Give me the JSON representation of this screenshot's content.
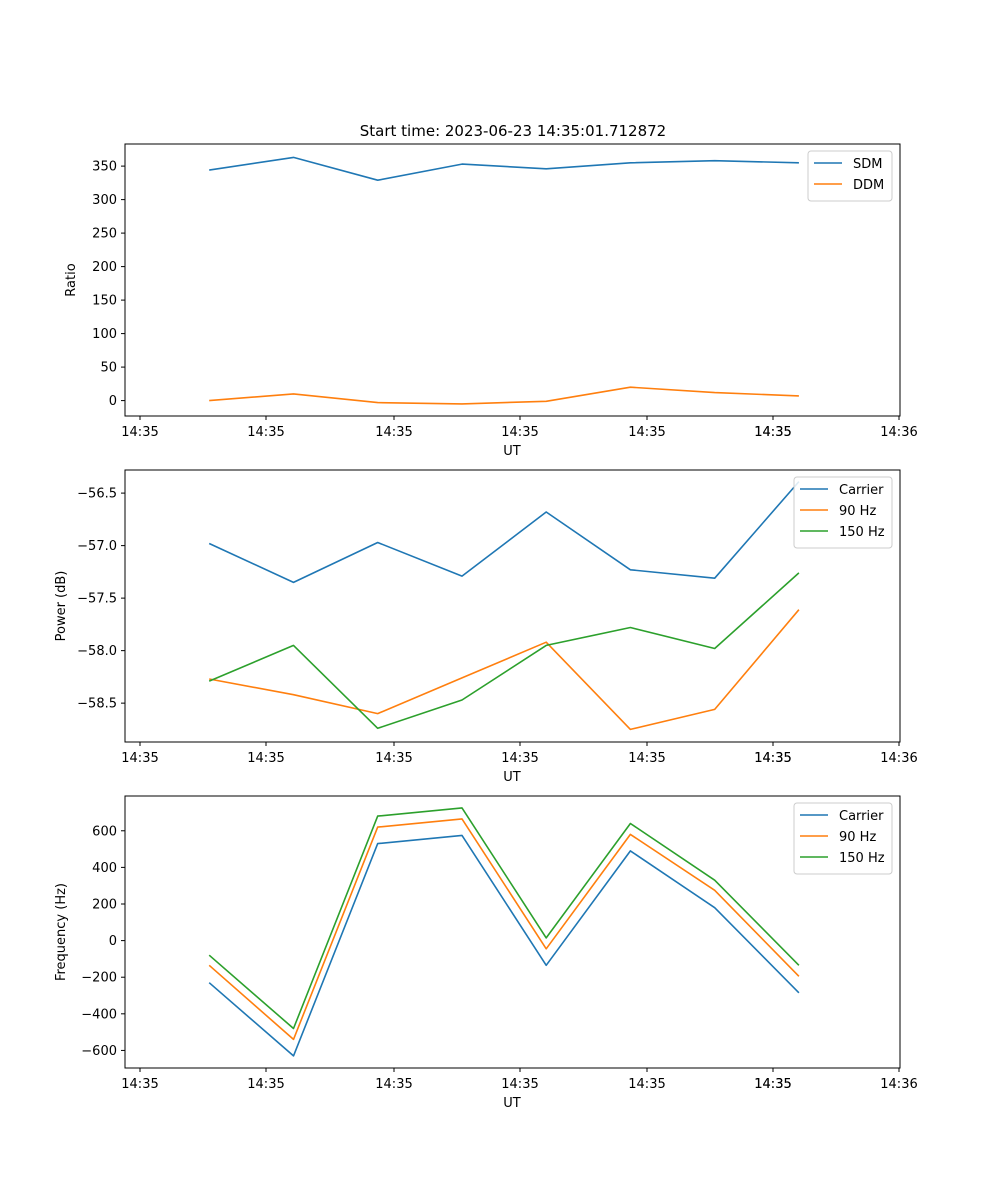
{
  "chart_data": [
    {
      "type": "line",
      "title": "Start time: 2023-06-23 14:35:01.712872",
      "xlabel": "UT",
      "ylabel": "Ratio",
      "x_tick_labels": [
        "14:35",
        "14:35",
        "14:35",
        "14:35",
        "14:35",
        "14:35",
        "14:35"
      ],
      "x_tick_last": "14:36",
      "xlim_seconds_after_start": [
        -1.0,
        8.2
      ],
      "y_ticks": [
        0,
        50,
        100,
        150,
        200,
        250,
        300,
        350
      ],
      "ylim": [
        -23,
        383
      ],
      "legend_position": "top-right",
      "x_seconds_after_start": [
        0,
        1,
        2,
        3,
        4,
        5,
        6,
        7
      ],
      "series": [
        {
          "name": "SDM",
          "color": "#1f77b4",
          "values": [
            344,
            363,
            329,
            353,
            346,
            355,
            358,
            355
          ]
        },
        {
          "name": "DDM",
          "color": "#ff7f0e",
          "values": [
            0,
            10,
            -3,
            -5,
            -1,
            20,
            12,
            7
          ]
        }
      ]
    },
    {
      "type": "line",
      "title": "",
      "xlabel": "UT",
      "ylabel": "Power (dB)",
      "x_tick_labels": [
        "14:35",
        "14:35",
        "14:35",
        "14:35",
        "14:35",
        "14:35",
        "14:35"
      ],
      "x_tick_last": "14:36",
      "xlim_seconds_after_start": [
        -1.0,
        8.2
      ],
      "y_ticks": [
        -58.5,
        -58.0,
        -57.5,
        -57.0,
        -56.5
      ],
      "y_tick_labels": [
        "−58.5",
        "−58.0",
        "−57.5",
        "−57.0",
        "−56.5"
      ],
      "ylim": [
        -58.87,
        -56.28
      ],
      "legend_position": "top-right",
      "x_seconds_after_start": [
        0,
        1,
        2,
        3,
        4,
        5,
        6,
        7
      ],
      "series": [
        {
          "name": "Carrier",
          "color": "#1f77b4",
          "values": [
            -56.98,
            -57.35,
            -56.97,
            -57.29,
            -56.68,
            -57.23,
            -57.31,
            -56.39
          ]
        },
        {
          "name": "90 Hz",
          "color": "#ff7f0e",
          "values": [
            -58.27,
            -58.42,
            -58.6,
            -58.26,
            -57.92,
            -58.75,
            -58.56,
            -57.61
          ]
        },
        {
          "name": "150 Hz",
          "color": "#2ca02c",
          "values": [
            -58.29,
            -57.95,
            -58.74,
            -58.47,
            -57.95,
            -57.78,
            -57.98,
            -57.26
          ]
        }
      ]
    },
    {
      "type": "line",
      "title": "",
      "xlabel": "UT",
      "ylabel": "Frequency (Hz)",
      "x_tick_labels": [
        "14:35",
        "14:35",
        "14:35",
        "14:35",
        "14:35",
        "14:35",
        "14:35"
      ],
      "x_tick_last": "14:36",
      "xlim_seconds_after_start": [
        -1.0,
        8.2
      ],
      "y_ticks": [
        -600,
        -400,
        -200,
        0,
        200,
        400,
        600
      ],
      "y_tick_labels": [
        "−600",
        "−400",
        "−200",
        "0",
        "200",
        "400",
        "600"
      ],
      "ylim": [
        -696,
        790
      ],
      "legend_position": "top-right",
      "x_seconds_after_start": [
        0,
        1,
        2,
        3,
        4,
        5,
        6,
        7
      ],
      "series": [
        {
          "name": "Carrier",
          "color": "#1f77b4",
          "values": [
            -230,
            -630,
            530,
            575,
            -135,
            490,
            180,
            -285
          ]
        },
        {
          "name": "90 Hz",
          "color": "#ff7f0e",
          "values": [
            -135,
            -540,
            620,
            665,
            -45,
            580,
            275,
            -195
          ]
        },
        {
          "name": "150 Hz",
          "color": "#2ca02c",
          "values": [
            -80,
            -480,
            680,
            725,
            15,
            640,
            330,
            -135
          ]
        }
      ]
    }
  ]
}
